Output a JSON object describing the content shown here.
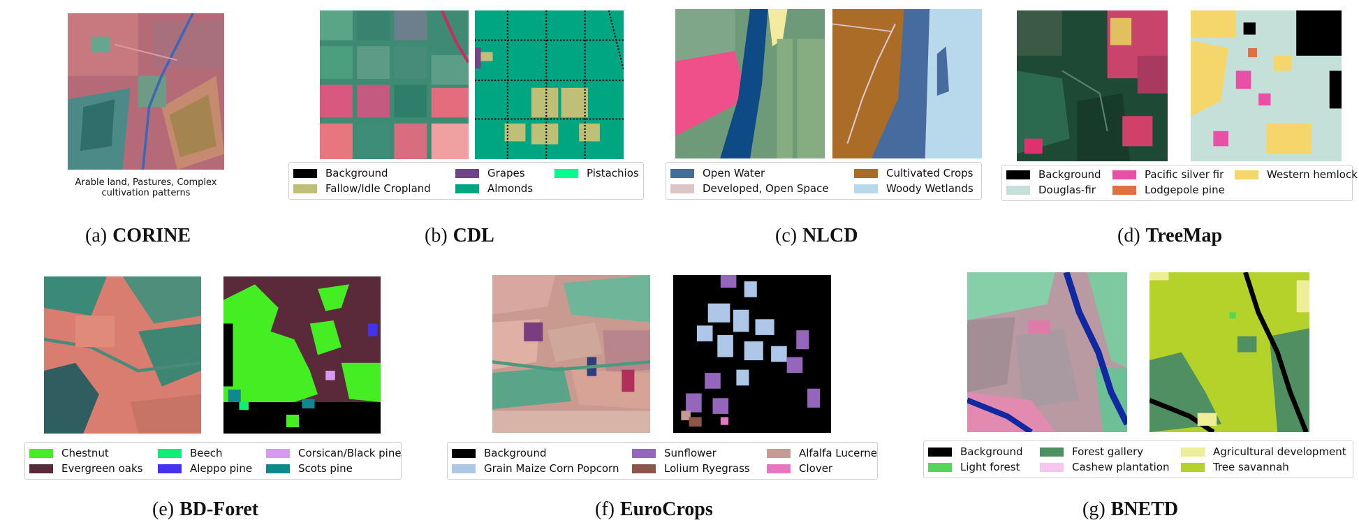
{
  "panels": [
    {
      "id": "a",
      "caption": {
        "label": "(a)",
        "dataset": "CORINE"
      },
      "image_caption": [
        "Arable land, Pastures, Complex",
        "cultivation patterns"
      ]
    },
    {
      "id": "b",
      "caption": {
        "label": "(b)",
        "dataset": "CDL"
      },
      "legend": [
        {
          "label": "Background",
          "color": "#000000"
        },
        {
          "label": "Fallow/Idle Cropland",
          "color": "#bfbf77"
        },
        {
          "label": "Grapes",
          "color": "#704489"
        },
        {
          "label": "Almonds",
          "color": "#00a582"
        },
        {
          "label": "Pistachios",
          "color": "#00ff8c"
        }
      ]
    },
    {
      "id": "c",
      "caption": {
        "label": "(c)",
        "dataset": "NLCD"
      },
      "legend": [
        {
          "label": "Open Water",
          "color": "#466b9f"
        },
        {
          "label": "Developed, Open Space",
          "color": "#dec5c5"
        },
        {
          "label": "Cultivated Crops",
          "color": "#ab6c28"
        },
        {
          "label": "Woody Wetlands",
          "color": "#b8d9eb"
        }
      ]
    },
    {
      "id": "d",
      "caption": {
        "label": "(d)",
        "dataset": "TreeMap"
      },
      "legend": [
        {
          "label": "Background",
          "color": "#000000"
        },
        {
          "label": "Douglas-fir",
          "color": "#c4e0d8"
        },
        {
          "label": "Pacific silver fir",
          "color": "#e84fa6"
        },
        {
          "label": "Lodgepole pine",
          "color": "#e07040"
        },
        {
          "label": "Western hemlock",
          "color": "#f5d66a"
        }
      ]
    },
    {
      "id": "e",
      "caption": {
        "label": "(e)",
        "dataset": "BD-Foret"
      },
      "legend": [
        {
          "label": "Chestnut",
          "color": "#44ee22"
        },
        {
          "label": "Evergreen oaks",
          "color": "#5a2a3a"
        },
        {
          "label": "Beech",
          "color": "#11ee77"
        },
        {
          "label": "Aleppo pine",
          "color": "#4433ee"
        },
        {
          "label": "Corsican/Black pine",
          "color": "#d89af0"
        },
        {
          "label": "Scots pine",
          "color": "#11888f"
        }
      ]
    },
    {
      "id": "f",
      "caption": {
        "label": "(f)",
        "dataset": "EuroCrops"
      },
      "legend": [
        {
          "label": "Background",
          "color": "#000000"
        },
        {
          "label": "Grain Maize Corn Popcorn",
          "color": "#aec6e8"
        },
        {
          "label": "Sunflower",
          "color": "#9467bd"
        },
        {
          "label": "Lolium Ryegrass",
          "color": "#8c564b"
        },
        {
          "label": "Alfalfa Lucerne",
          "color": "#c49c94"
        },
        {
          "label": "Clover",
          "color": "#e377c2"
        }
      ]
    },
    {
      "id": "g",
      "caption": {
        "label": "(g)",
        "dataset": "BNETD"
      },
      "legend": [
        {
          "label": "Background",
          "color": "#000000"
        },
        {
          "label": "Light forest",
          "color": "#55d55a"
        },
        {
          "label": "Forest gallery",
          "color": "#4f8f62"
        },
        {
          "label": "Cashew plantation",
          "color": "#f7c6ee"
        },
        {
          "label": "Agricultural development",
          "color": "#eeee99"
        },
        {
          "label": "Tree savannah",
          "color": "#b5d22a"
        }
      ]
    }
  ]
}
